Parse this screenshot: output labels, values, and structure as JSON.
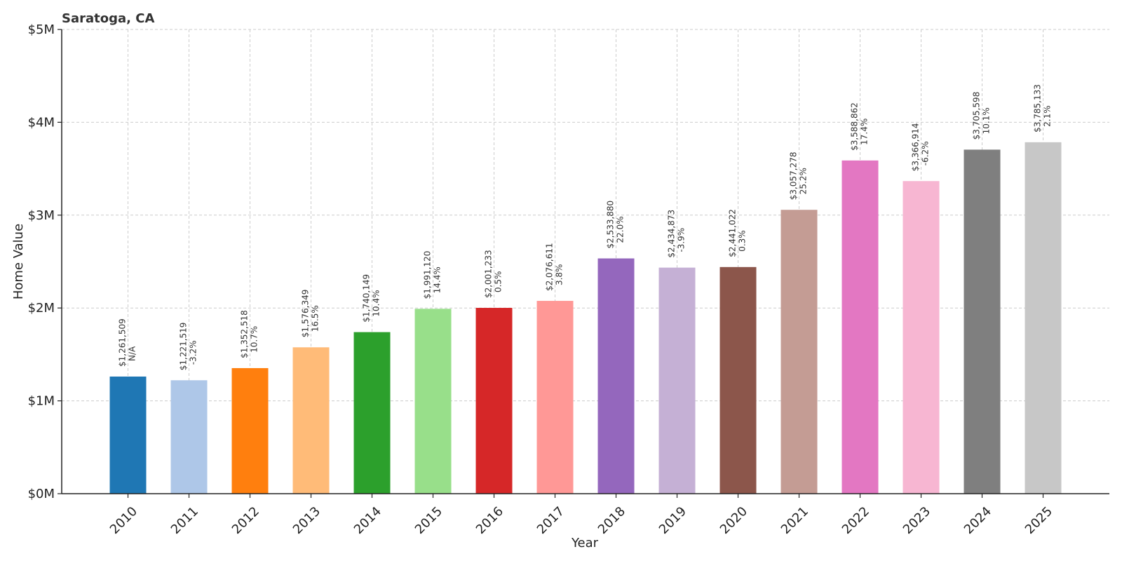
{
  "chart_data": {
    "type": "bar",
    "title": "Saratoga, CA",
    "xlabel": "Year",
    "ylabel": "Home Value",
    "ylim": [
      0,
      5000000
    ],
    "yticks": [
      0,
      1000000,
      2000000,
      3000000,
      4000000,
      5000000
    ],
    "ytick_labels": [
      "$0M",
      "$1M",
      "$2M",
      "$3M",
      "$4M",
      "$5M"
    ],
    "grid": true,
    "categories": [
      "2010",
      "2011",
      "2012",
      "2013",
      "2014",
      "2015",
      "2016",
      "2017",
      "2018",
      "2019",
      "2020",
      "2021",
      "2022",
      "2023",
      "2024",
      "2025"
    ],
    "values": [
      1261509,
      1221519,
      1352518,
      1576349,
      1740149,
      1991120,
      2001233,
      2076611,
      2533880,
      2434873,
      2441022,
      3057278,
      3588862,
      3366914,
      3705598,
      3785133
    ],
    "value_labels": [
      "$1,261,509",
      "$1,221,519",
      "$1,352,518",
      "$1,576,349",
      "$1,740,149",
      "$1,991,120",
      "$2,001,233",
      "$2,076,611",
      "$2,533,880",
      "$2,434,873",
      "$2,441,022",
      "$3,057,278",
      "$3,588,862",
      "$3,366,914",
      "$3,705,598",
      "$3,785,133"
    ],
    "change_labels": [
      "N/A",
      "-3.2%",
      "10.7%",
      "16.5%",
      "10.4%",
      "14.4%",
      "0.5%",
      "3.8%",
      "22.0%",
      "-3.9%",
      "0.3%",
      "25.2%",
      "17.4%",
      "-6.2%",
      "10.1%",
      "2.1%"
    ],
    "colors": [
      "#1f77b4",
      "#aec7e8",
      "#ff7f0e",
      "#ffbb78",
      "#2ca02c",
      "#98df8a",
      "#d62728",
      "#ff9896",
      "#9467bd",
      "#c5b0d5",
      "#8c564b",
      "#c49c94",
      "#e377c2",
      "#f7b6d2",
      "#7f7f7f",
      "#c7c7c7"
    ]
  }
}
